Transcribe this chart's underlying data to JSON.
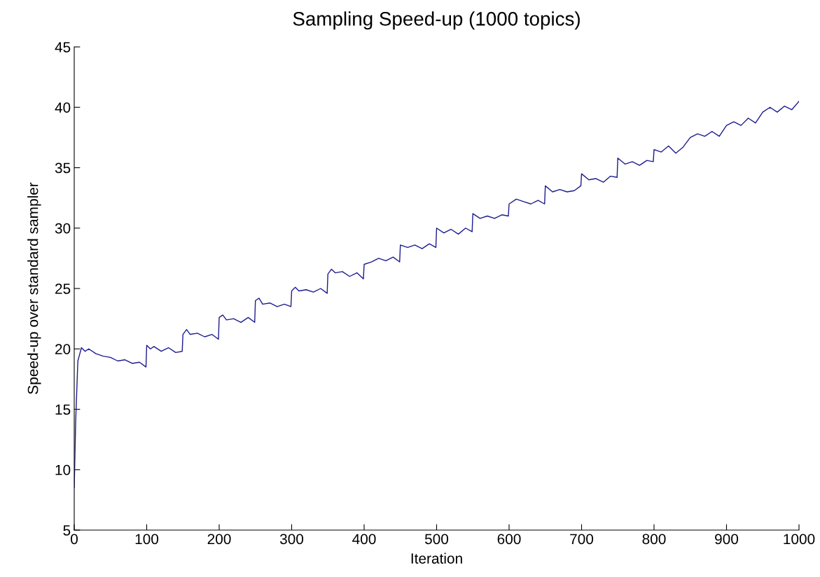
{
  "chart_data": {
    "type": "line",
    "title": "Sampling Speed-up (1000 topics)",
    "xlabel": "Iteration",
    "ylabel": "Speed-up over standard sampler",
    "x": [
      0,
      2,
      5,
      10,
      15,
      20,
      30,
      40,
      50,
      60,
      70,
      80,
      90,
      99,
      100,
      105,
      110,
      120,
      130,
      140,
      149,
      150,
      155,
      160,
      170,
      180,
      190,
      199,
      200,
      205,
      210,
      220,
      230,
      240,
      249,
      250,
      255,
      260,
      270,
      280,
      290,
      299,
      300,
      305,
      310,
      320,
      330,
      340,
      349,
      350,
      355,
      360,
      370,
      380,
      390,
      399,
      400,
      410,
      420,
      430,
      440,
      449,
      450,
      460,
      470,
      480,
      490,
      499,
      500,
      510,
      520,
      530,
      540,
      549,
      550,
      560,
      570,
      580,
      590,
      599,
      600,
      610,
      620,
      630,
      640,
      649,
      650,
      660,
      670,
      680,
      690,
      699,
      700,
      710,
      720,
      730,
      740,
      749,
      750,
      760,
      770,
      780,
      790,
      799,
      800,
      810,
      820,
      830,
      840,
      850,
      860,
      870,
      880,
      890,
      900,
      910,
      920,
      930,
      940,
      950,
      960,
      970,
      980,
      990,
      1000
    ],
    "series": [
      {
        "color": "#1c1c8e",
        "values": [
          8.5,
          14,
          19,
          20.1,
          19.8,
          20.0,
          19.6,
          19.4,
          19.3,
          19.0,
          19.1,
          18.8,
          18.9,
          18.5,
          20.3,
          20.0,
          20.2,
          19.8,
          20.1,
          19.7,
          19.8,
          21.2,
          21.6,
          21.2,
          21.3,
          21.0,
          21.2,
          20.8,
          22.6,
          22.8,
          22.4,
          22.5,
          22.2,
          22.6,
          22.2,
          24.0,
          24.2,
          23.7,
          23.8,
          23.5,
          23.7,
          23.5,
          24.8,
          25.1,
          24.8,
          24.9,
          24.7,
          25.0,
          24.6,
          26.2,
          26.6,
          26.3,
          26.4,
          26.0,
          26.3,
          25.8,
          27.0,
          27.2,
          27.5,
          27.3,
          27.6,
          27.2,
          28.6,
          28.4,
          28.6,
          28.3,
          28.7,
          28.4,
          30.0,
          29.6,
          29.9,
          29.5,
          30.0,
          29.7,
          31.2,
          30.8,
          31.0,
          30.8,
          31.1,
          31.0,
          32.0,
          32.4,
          32.2,
          32.0,
          32.3,
          32.0,
          33.5,
          33.0,
          33.2,
          33.0,
          33.1,
          33.5,
          34.5,
          34.0,
          34.1,
          33.8,
          34.3,
          34.2,
          35.8,
          35.3,
          35.5,
          35.2,
          35.6,
          35.5,
          36.5,
          36.3,
          36.8,
          36.2,
          36.7,
          37.5,
          37.8,
          37.6,
          38.0,
          37.6,
          38.5,
          38.8,
          38.5,
          39.1,
          38.7,
          39.6,
          40.0,
          39.6,
          40.1,
          39.8,
          40.5
        ]
      }
    ],
    "xlim": [
      0,
      1000
    ],
    "xticks": [
      0,
      100,
      200,
      300,
      400,
      500,
      600,
      700,
      800,
      900,
      1000
    ],
    "ylim": [
      5,
      45
    ],
    "yticks": [
      5,
      10,
      15,
      20,
      25,
      30,
      35,
      40,
      45
    ],
    "grid": false,
    "legend": false,
    "marker": "none",
    "line_style": "solid"
  }
}
